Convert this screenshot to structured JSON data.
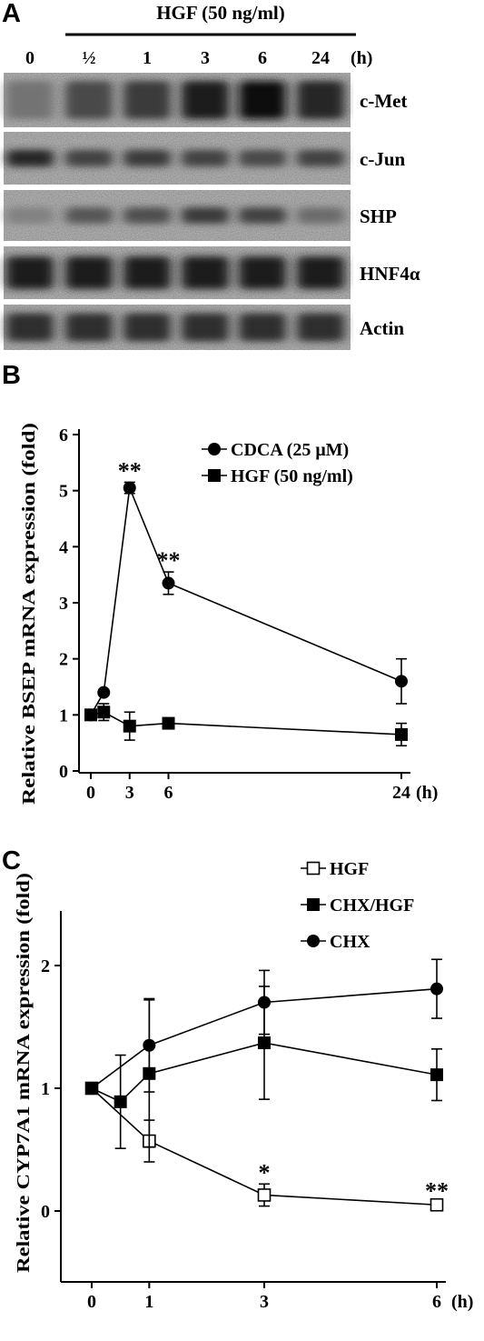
{
  "panel_a": {
    "letter": "A",
    "treatment_header": "HGF (50 ng/ml)",
    "lane_labels": [
      "0",
      "½",
      "1",
      "3",
      "6",
      "24"
    ],
    "unit": "(h)",
    "blots": [
      {
        "name": "c-Met",
        "band_intensity": [
          0.25,
          0.55,
          0.65,
          0.85,
          0.95,
          0.8
        ]
      },
      {
        "name": "c-Jun",
        "band_intensity": [
          0.8,
          0.6,
          0.65,
          0.6,
          0.55,
          0.6
        ]
      },
      {
        "name": "SHP",
        "band_intensity": [
          0.15,
          0.45,
          0.5,
          0.65,
          0.6,
          0.3
        ]
      },
      {
        "name": "HNF4α",
        "band_intensity": [
          0.85,
          0.85,
          0.85,
          0.85,
          0.85,
          0.85
        ]
      },
      {
        "name": "Actin",
        "band_intensity": [
          0.75,
          0.75,
          0.75,
          0.75,
          0.75,
          0.75
        ]
      }
    ]
  },
  "panel_b": {
    "letter": "B",
    "chart_data": {
      "type": "line",
      "ylabel": "Relative BSEP mRNA expression (fold)",
      "xlabel": "(h)",
      "x_ticks": [
        0,
        3,
        6,
        24
      ],
      "y_ticks": [
        0,
        1,
        2,
        3,
        4,
        5,
        6
      ],
      "ylim": [
        0,
        6
      ],
      "xlim": [
        0,
        24
      ],
      "series": [
        {
          "name": "CDCA (25 μM)",
          "marker": "circle",
          "x": [
            0,
            1,
            3,
            6,
            24
          ],
          "y": [
            1.0,
            1.4,
            5.05,
            3.35,
            1.6
          ],
          "err": [
            0.05,
            0.05,
            0.1,
            0.2,
            0.4
          ]
        },
        {
          "name": "HGF (50 ng/ml)",
          "marker": "square",
          "x": [
            0,
            1,
            3,
            6,
            24
          ],
          "y": [
            1.0,
            1.05,
            0.8,
            0.85,
            0.65
          ],
          "err": [
            0.05,
            0.15,
            0.25,
            0.05,
            0.2
          ]
        }
      ],
      "annotations": [
        {
          "x": 3,
          "y": 5.05,
          "text": "**"
        },
        {
          "x": 6,
          "y": 3.35,
          "text": "**"
        }
      ]
    }
  },
  "panel_c": {
    "letter": "C",
    "chart_data": {
      "type": "line",
      "ylabel": "Relative CYP7A1 mRNA expression (fold)",
      "xlabel": "(h)",
      "x_ticks": [
        0,
        1,
        3,
        6
      ],
      "y_ticks": [
        0,
        1,
        2
      ],
      "ylim": [
        0,
        2.4
      ],
      "xlim": [
        0,
        6
      ],
      "series": [
        {
          "name": "HGF",
          "marker": "open-square",
          "x": [
            0,
            1,
            3,
            6
          ],
          "y": [
            1.0,
            0.57,
            0.13,
            0.05
          ],
          "err": [
            0.02,
            0.17,
            0.09,
            0.02
          ]
        },
        {
          "name": "CHX/HGF",
          "marker": "square",
          "x": [
            0,
            0.5,
            1,
            3,
            6
          ],
          "y": [
            1.0,
            0.89,
            1.12,
            1.37,
            1.11
          ],
          "err": [
            0.02,
            0.38,
            0.6,
            0.46,
            0.21
          ]
        },
        {
          "name": "CHX",
          "marker": "circle",
          "x": [
            0,
            1,
            3,
            6
          ],
          "y": [
            1.0,
            1.35,
            1.7,
            1.81
          ],
          "err": [
            0.02,
            0.38,
            0.26,
            0.24
          ]
        }
      ],
      "annotations": [
        {
          "x": 3,
          "y": 0.13,
          "text": "*"
        },
        {
          "x": 6,
          "y": 0.05,
          "text": "**"
        }
      ]
    }
  }
}
